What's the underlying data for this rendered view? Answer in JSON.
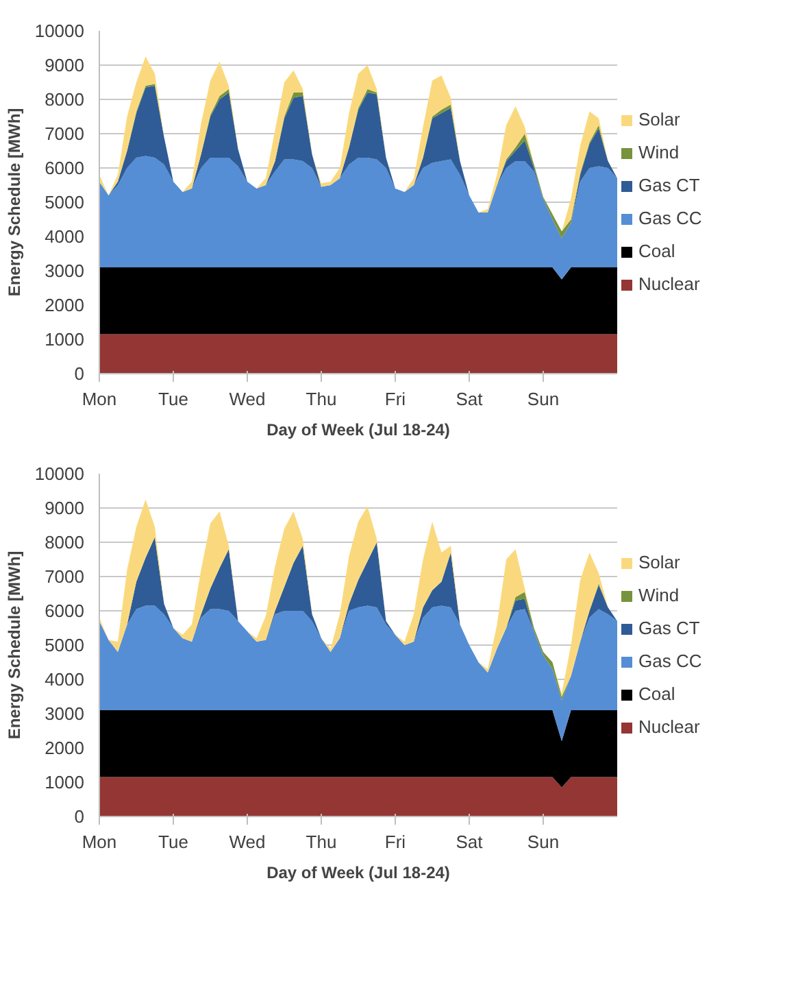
{
  "chart_data": [
    {
      "type": "area",
      "stacked": true,
      "xlabel": "Day of Week (Jul 18-24)",
      "ylabel": "Energy Schedule [MWh]",
      "categories": [
        "Mon",
        null,
        null,
        null,
        null,
        null,
        null,
        null,
        "Tue",
        null,
        null,
        null,
        null,
        null,
        null,
        null,
        "Wed",
        null,
        null,
        null,
        null,
        null,
        null,
        null,
        "Thu",
        null,
        null,
        null,
        null,
        null,
        null,
        null,
        "Fri",
        null,
        null,
        null,
        null,
        null,
        null,
        null,
        "Sat",
        null,
        null,
        null,
        null,
        null,
        null,
        null,
        "Sun",
        null,
        null,
        null,
        null,
        null,
        null,
        null,
        null
      ],
      "ylim": [
        0,
        10000
      ],
      "yticks": [
        0,
        1000,
        2000,
        3000,
        4000,
        5000,
        6000,
        7000,
        8000,
        9000,
        10000
      ],
      "grid": "y",
      "legend": "right",
      "series": [
        {
          "name": "Nuclear",
          "color": "#943634",
          "values": [
            1150,
            1150,
            1150,
            1150,
            1150,
            1150,
            1150,
            1150,
            1150,
            1150,
            1150,
            1150,
            1150,
            1150,
            1150,
            1150,
            1150,
            1150,
            1150,
            1150,
            1150,
            1150,
            1150,
            1150,
            1150,
            1150,
            1150,
            1150,
            1150,
            1150,
            1150,
            1150,
            1150,
            1150,
            1150,
            1150,
            1150,
            1150,
            1150,
            1150,
            1150,
            1150,
            1150,
            1150,
            1150,
            1150,
            1150,
            1150,
            1150,
            1150,
            1150,
            1150,
            1150,
            1150,
            1150,
            1150,
            1150
          ]
        },
        {
          "name": "Coal",
          "color": "#000000",
          "values": [
            1950,
            1950,
            1950,
            1950,
            1950,
            1950,
            1950,
            1950,
            1950,
            1950,
            1950,
            1950,
            1950,
            1950,
            1950,
            1950,
            1950,
            1950,
            1950,
            1950,
            1950,
            1950,
            1950,
            1950,
            1950,
            1950,
            1950,
            1950,
            1950,
            1950,
            1950,
            1950,
            1950,
            1950,
            1950,
            1950,
            1950,
            1950,
            1950,
            1950,
            1950,
            1950,
            1950,
            1950,
            1950,
            1950,
            1950,
            1950,
            1950,
            1950,
            1600,
            1950,
            1950,
            1950,
            1950,
            1950,
            1950
          ]
        },
        {
          "name": "Gas CC",
          "color": "#558ed5",
          "values": [
            2500,
            2100,
            2400,
            2900,
            3200,
            3250,
            3200,
            3000,
            2500,
            2200,
            2300,
            2900,
            3200,
            3200,
            3200,
            2950,
            2500,
            2300,
            2400,
            2800,
            3150,
            3150,
            3100,
            2900,
            2350,
            2400,
            2600,
            3000,
            3200,
            3200,
            3150,
            2900,
            2300,
            2200,
            2400,
            2900,
            3050,
            3100,
            3150,
            2700,
            2100,
            1600,
            1600,
            2400,
            2900,
            3100,
            3100,
            2800,
            2000,
            1400,
            1200,
            1300,
            2500,
            2900,
            2950,
            2900,
            2600
          ]
        },
        {
          "name": "Gas CT",
          "color": "#2f5c96",
          "values": [
            0,
            0,
            100,
            500,
            1300,
            2000,
            2100,
            800,
            0,
            0,
            0,
            400,
            1200,
            1700,
            1900,
            500,
            0,
            0,
            0,
            300,
            1200,
            1800,
            1900,
            400,
            0,
            0,
            0,
            500,
            1400,
            1900,
            1900,
            300,
            0,
            0,
            0,
            300,
            1300,
            1400,
            1500,
            400,
            0,
            0,
            0,
            0,
            200,
            300,
            600,
            100,
            0,
            0,
            0,
            0,
            200,
            700,
            1100,
            200,
            0
          ]
        },
        {
          "name": "Wind",
          "color": "#77933c",
          "values": [
            0,
            0,
            0,
            0,
            50,
            50,
            50,
            0,
            0,
            0,
            0,
            0,
            50,
            100,
            100,
            0,
            0,
            0,
            0,
            0,
            50,
            150,
            100,
            0,
            0,
            0,
            0,
            0,
            50,
            100,
            50,
            0,
            0,
            0,
            0,
            0,
            50,
            100,
            100,
            0,
            0,
            0,
            0,
            0,
            50,
            100,
            200,
            100,
            50,
            150,
            200,
            100,
            50,
            50,
            100,
            0,
            0
          ]
        },
        {
          "name": "Solar",
          "color": "#fad97e",
          "values": [
            200,
            0,
            200,
            1000,
            850,
            850,
            300,
            0,
            0,
            0,
            200,
            900,
            1000,
            1000,
            100,
            0,
            0,
            0,
            200,
            900,
            1000,
            650,
            100,
            0,
            100,
            100,
            300,
            1000,
            1000,
            700,
            100,
            0,
            0,
            0,
            200,
            900,
            1050,
            1000,
            200,
            0,
            0,
            0,
            100,
            300,
            1000,
            1200,
            200,
            0,
            0,
            0,
            0,
            600,
            800,
            900,
            200,
            0,
            0
          ]
        }
      ]
    },
    {
      "type": "area",
      "stacked": true,
      "xlabel": "Day of Week (Jul 18-24)",
      "ylabel": "Energy Schedule [MWh]",
      "categories": [
        "Mon",
        null,
        null,
        null,
        null,
        null,
        null,
        null,
        "Tue",
        null,
        null,
        null,
        null,
        null,
        null,
        null,
        "Wed",
        null,
        null,
        null,
        null,
        null,
        null,
        null,
        "Thu",
        null,
        null,
        null,
        null,
        null,
        null,
        null,
        "Fri",
        null,
        null,
        null,
        null,
        null,
        null,
        null,
        "Sat",
        null,
        null,
        null,
        null,
        null,
        null,
        null,
        "Sun",
        null,
        null,
        null,
        null,
        null,
        null,
        null,
        null
      ],
      "ylim": [
        0,
        10000
      ],
      "yticks": [
        0,
        1000,
        2000,
        3000,
        4000,
        5000,
        6000,
        7000,
        8000,
        9000,
        10000
      ],
      "grid": "y",
      "legend": "right",
      "series": [
        {
          "name": "Nuclear",
          "color": "#943634",
          "values": [
            1150,
            1150,
            1150,
            1150,
            1150,
            1150,
            1150,
            1150,
            1150,
            1150,
            1150,
            1150,
            1150,
            1150,
            1150,
            1150,
            1150,
            1150,
            1150,
            1150,
            1150,
            1150,
            1150,
            1150,
            1150,
            1150,
            1150,
            1150,
            1150,
            1150,
            1150,
            1150,
            1150,
            1150,
            1150,
            1150,
            1150,
            1150,
            1150,
            1150,
            1150,
            1150,
            1150,
            1150,
            1150,
            1150,
            1150,
            1150,
            1150,
            1150,
            850,
            1150,
            1150,
            1150,
            1150,
            1150,
            1150
          ]
        },
        {
          "name": "Coal",
          "color": "#000000",
          "values": [
            1950,
            1950,
            1950,
            1950,
            1950,
            1950,
            1950,
            1950,
            1950,
            1950,
            1950,
            1950,
            1950,
            1950,
            1950,
            1950,
            1950,
            1950,
            1950,
            1950,
            1950,
            1950,
            1950,
            1950,
            1950,
            1950,
            1950,
            1950,
            1950,
            1950,
            1950,
            1950,
            1950,
            1950,
            1950,
            1950,
            1950,
            1950,
            1950,
            1950,
            1950,
            1950,
            1950,
            1950,
            1950,
            1950,
            1950,
            1950,
            1950,
            1950,
            1350,
            1950,
            1950,
            1950,
            1950,
            1950,
            1950
          ]
        },
        {
          "name": "Gas CC",
          "color": "#558ed5",
          "values": [
            2600,
            2050,
            1700,
            2500,
            2950,
            3050,
            3050,
            2800,
            2400,
            2100,
            2000,
            2700,
            2950,
            2950,
            2900,
            2600,
            2300,
            2000,
            2050,
            2800,
            2900,
            2900,
            2900,
            2600,
            2100,
            1700,
            2100,
            2900,
            3000,
            3050,
            3000,
            2500,
            2200,
            1900,
            2000,
            2700,
            3000,
            3050,
            3000,
            2500,
            1900,
            1400,
            1100,
            1800,
            2400,
            2900,
            2950,
            2300,
            1600,
            1200,
            1200,
            1000,
            2000,
            2700,
            2950,
            2800,
            2600
          ]
        },
        {
          "name": "Gas CT",
          "color": "#2f5c96",
          "values": [
            0,
            0,
            0,
            0,
            800,
            1400,
            2000,
            300,
            0,
            0,
            0,
            100,
            600,
            1200,
            1800,
            0,
            0,
            0,
            0,
            100,
            700,
            1400,
            1900,
            200,
            0,
            0,
            0,
            200,
            800,
            1300,
            1900,
            100,
            0,
            0,
            0,
            300,
            500,
            700,
            1600,
            0,
            0,
            0,
            0,
            0,
            0,
            300,
            300,
            0,
            0,
            0,
            0,
            0,
            0,
            200,
            700,
            200,
            0
          ]
        },
        {
          "name": "Wind",
          "color": "#77933c",
          "values": [
            null,
            null,
            null,
            null,
            null,
            null,
            null,
            null,
            null,
            null,
            null,
            null,
            null,
            null,
            null,
            null,
            null,
            null,
            null,
            null,
            null,
            null,
            null,
            null,
            null,
            null,
            null,
            null,
            null,
            null,
            null,
            null,
            null,
            null,
            null,
            null,
            null,
            null,
            null,
            null,
            null,
            null,
            null,
            null,
            0,
            100,
            200,
            100,
            100,
            200,
            100,
            0,
            null,
            0,
            50,
            0,
            null
          ]
        },
        {
          "name": "Solar",
          "color": "#fad97e",
          "values": [
            100,
            0,
            300,
            1600,
            1600,
            1700,
            300,
            0,
            0,
            100,
            500,
            1300,
            1900,
            1650,
            100,
            0,
            0,
            100,
            700,
            1300,
            1700,
            1500,
            200,
            0,
            0,
            100,
            700,
            1400,
            1700,
            1600,
            100,
            0,
            0,
            100,
            800,
            1400,
            2000,
            850,
            200,
            0,
            0,
            0,
            100,
            700,
            2000,
            1400,
            100,
            0,
            0,
            0,
            100,
            900,
            1800,
            1700,
            300,
            0,
            0
          ]
        }
      ]
    }
  ]
}
